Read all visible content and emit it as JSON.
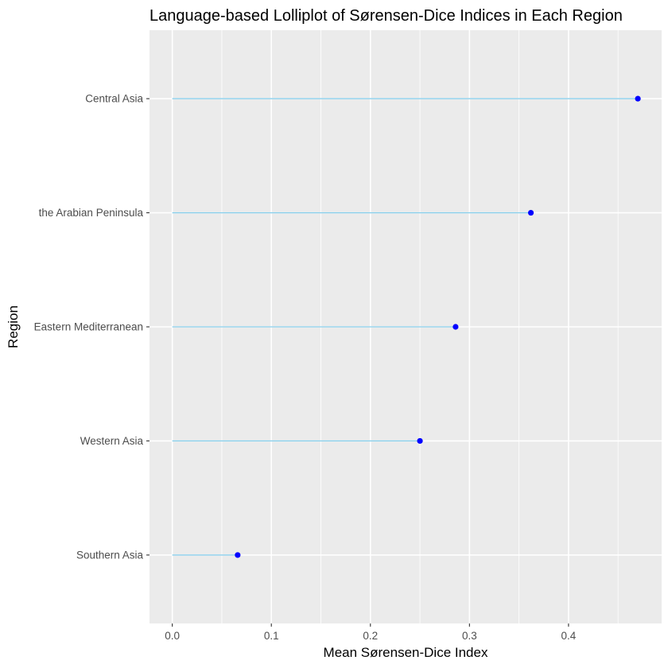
{
  "chart_data": {
    "type": "lollipop",
    "title": "Language-based Lolliplot of Sørensen-Dice Indices in Each Region",
    "xlabel": "Mean Sørensen-Dice Index",
    "ylabel": "Region",
    "categories": [
      "Southern Asia",
      "Western Asia",
      "Eastern Mediterranean",
      "the Arabian Peninsula",
      "Central Asia"
    ],
    "values": [
      0.066,
      0.25,
      0.286,
      0.362,
      0.47
    ],
    "xlim": [
      -0.023,
      0.494
    ],
    "x_ticks": [
      0.0,
      0.1,
      0.2,
      0.3,
      0.4
    ],
    "x_tick_labels": [
      "0.0",
      "0.1",
      "0.2",
      "0.3",
      "0.4"
    ],
    "colors": {
      "panel_background": "#ebebeb",
      "grid": "#ffffff",
      "stem": "#87ceeb",
      "point": "#0000ff",
      "tick": "#333333"
    },
    "grid": true,
    "legend": "none"
  }
}
